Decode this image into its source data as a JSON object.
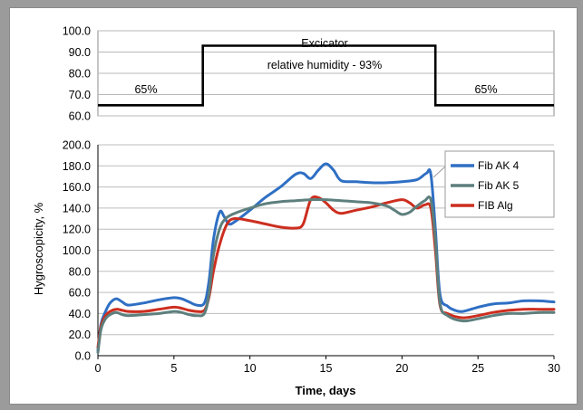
{
  "chart_data": [
    {
      "type": "line",
      "title": "",
      "ylim": [
        60,
        100
      ],
      "y_ticks": [
        "100.0",
        "90.0",
        "80.0",
        "70.0",
        "60.0"
      ],
      "grid": true,
      "series": [
        {
          "x": [
            0,
            6.9,
            6.9,
            22.2,
            22.2,
            30
          ],
          "y": [
            65,
            65,
            93,
            93,
            65,
            65
          ],
          "color": "#000000"
        }
      ],
      "annotations": {
        "left_level": "65%",
        "top_label": "Excicator",
        "middle_label": "relative humidity - 93%",
        "right_level": "65%"
      }
    },
    {
      "type": "line",
      "xlabel": "Time, days",
      "ylabel": "Hygroscopicity, %",
      "xlim": [
        0,
        30
      ],
      "ylim": [
        0,
        200
      ],
      "x_ticks": [
        "0",
        "5",
        "10",
        "15",
        "20",
        "25",
        "30"
      ],
      "y_ticks": [
        "200.0",
        "180.0",
        "160.0",
        "140.0",
        "120.0",
        "100.0",
        "80.0",
        "60.0",
        "40.0",
        "20.0",
        "0.0"
      ],
      "grid": true,
      "legend_position": "top-right",
      "series": [
        {
          "name": "Fib AK 4",
          "color": "#2f6fc4",
          "x": [
            0,
            0.2,
            0.5,
            0.8,
            1.2,
            1.6,
            2,
            3,
            4,
            5,
            5.5,
            6,
            6.5,
            7,
            7.3,
            7.6,
            8,
            8.3,
            8.6,
            9,
            10,
            11,
            12,
            13,
            13.5,
            14,
            14.5,
            15,
            15.5,
            16,
            17,
            18,
            19,
            20,
            21,
            21.6,
            21.9,
            22.2,
            22.5,
            23,
            23.5,
            24,
            25,
            26,
            27,
            28,
            29,
            30
          ],
          "y": [
            5,
            30,
            42,
            50,
            54,
            51,
            48,
            50,
            53,
            55,
            54,
            51,
            48,
            50,
            70,
            110,
            136,
            132,
            125,
            127,
            138,
            150,
            160,
            172,
            173,
            168,
            176,
            182,
            176,
            166,
            165,
            164,
            164,
            165,
            167,
            173,
            172,
            120,
            58,
            47,
            43,
            42,
            46,
            49,
            50,
            52,
            52,
            51
          ]
        },
        {
          "name": "Fib AK 5",
          "color": "#5d7f7d",
          "x": [
            0,
            0.2,
            0.5,
            0.8,
            1.2,
            1.6,
            2,
            3,
            4,
            5,
            5.5,
            6,
            6.5,
            7,
            7.3,
            7.6,
            8,
            8.4,
            9,
            10,
            11,
            12,
            13,
            14,
            15,
            16,
            17,
            18,
            19,
            19.5,
            20,
            20.5,
            21,
            21.5,
            21.9,
            22.2,
            22.5,
            23,
            24,
            25,
            26,
            27,
            28,
            29,
            30
          ],
          "y": [
            3,
            25,
            35,
            39,
            41,
            39,
            38,
            39,
            40,
            42,
            41,
            39,
            38,
            40,
            58,
            95,
            120,
            130,
            135,
            140,
            144,
            146,
            147,
            148,
            148,
            147,
            146,
            145,
            142,
            138,
            134,
            136,
            142,
            147,
            148,
            110,
            50,
            38,
            33,
            35,
            38,
            40,
            40,
            41,
            41
          ]
        },
        {
          "name": "FIB Alg",
          "color": "#cc2e1f",
          "x": [
            0,
            0.2,
            0.5,
            0.8,
            1.2,
            1.6,
            2,
            3,
            4,
            5,
            5.5,
            6,
            6.5,
            7,
            7.3,
            7.6,
            8,
            8.5,
            9,
            10,
            11,
            12,
            13,
            13.5,
            14,
            14.5,
            15,
            15.5,
            16,
            17,
            18,
            19,
            20,
            20.5,
            21,
            21.5,
            21.9,
            22.2,
            22.5,
            23,
            24,
            25,
            26,
            27,
            28,
            29,
            30
          ],
          "y": [
            8,
            28,
            38,
            42,
            44,
            43,
            42,
            42,
            44,
            46,
            45,
            43,
            42,
            43,
            55,
            80,
            105,
            125,
            130,
            128,
            125,
            122,
            121,
            125,
            148,
            150,
            145,
            138,
            135,
            138,
            141,
            145,
            148,
            145,
            140,
            143,
            140,
            100,
            48,
            40,
            36,
            38,
            41,
            43,
            44,
            44,
            44
          ]
        }
      ]
    }
  ]
}
